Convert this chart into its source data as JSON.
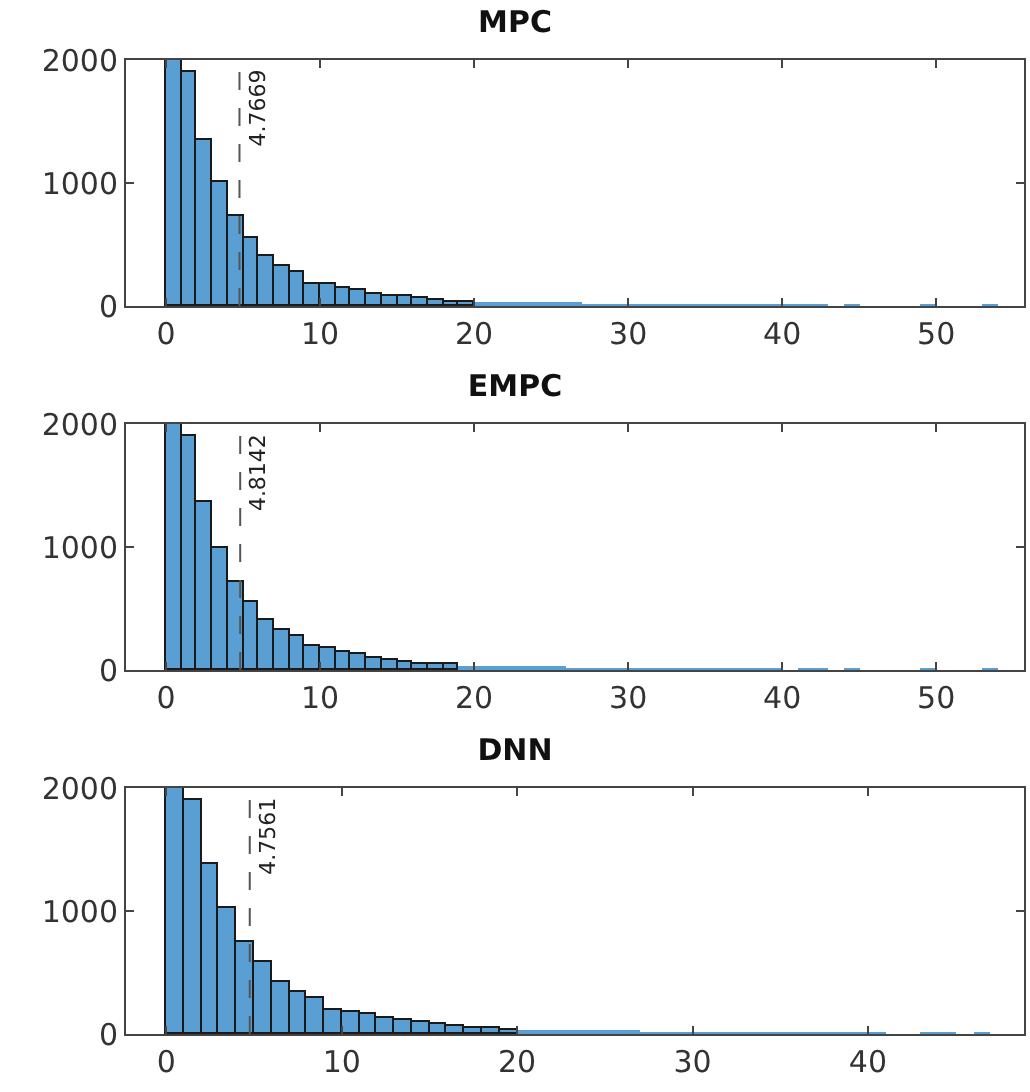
{
  "chart_data": [
    {
      "type": "histogram",
      "title": "MPC",
      "color": "#5a9fd4",
      "xlim": [
        -2.6,
        55.7
      ],
      "xticks": [
        0,
        10,
        20,
        30,
        40,
        50
      ],
      "ylim": [
        0,
        2000
      ],
      "yticks": [
        0,
        1000,
        2000
      ],
      "grid": false,
      "bins": [
        0,
        1,
        2,
        3,
        4,
        5,
        6,
        7,
        8,
        9,
        10,
        11,
        12,
        13,
        14,
        15,
        16,
        17,
        18,
        19,
        20,
        21,
        22,
        23,
        24,
        25,
        26,
        27,
        28,
        29,
        30,
        31,
        32,
        33,
        34,
        35,
        36,
        37,
        38,
        39,
        40,
        41,
        42,
        43,
        44,
        45,
        46,
        47,
        48,
        49,
        50,
        51,
        52,
        53,
        54
      ],
      "values": [
        2000,
        1910,
        1350,
        1010,
        730,
        550,
        410,
        330,
        280,
        180,
        180,
        150,
        130,
        100,
        80,
        80,
        65,
        50,
        40,
        40,
        30,
        30,
        30,
        20,
        20,
        20,
        20,
        10,
        8,
        8,
        6,
        6,
        5,
        5,
        5,
        5,
        5,
        4,
        4,
        4,
        4,
        4,
        4,
        0,
        5,
        0,
        0,
        0,
        0,
        5,
        0,
        0,
        0,
        5
      ],
      "ref_lines": [
        {
          "axis": "x",
          "value": 4.7669,
          "label": "4.7669",
          "line_style": "dashed",
          "color": "#555555"
        }
      ]
    },
    {
      "type": "histogram",
      "title": "EMPC",
      "color": "#5a9fd4",
      "xlim": [
        -2.6,
        55.7
      ],
      "xticks": [
        0,
        10,
        20,
        30,
        40,
        50
      ],
      "ylim": [
        0,
        2000
      ],
      "yticks": [
        0,
        1000,
        2000
      ],
      "grid": false,
      "bins": [
        0,
        1,
        2,
        3,
        4,
        5,
        6,
        7,
        8,
        9,
        10,
        11,
        12,
        13,
        14,
        15,
        16,
        17,
        18,
        19,
        20,
        21,
        22,
        23,
        24,
        25,
        26,
        27,
        28,
        29,
        30,
        31,
        32,
        33,
        34,
        35,
        36,
        37,
        38,
        39,
        40,
        41,
        42,
        43,
        44,
        45,
        46,
        47,
        48,
        49,
        50,
        51,
        52,
        53,
        54
      ],
      "values": [
        2000,
        1900,
        1370,
        1000,
        720,
        550,
        405,
        330,
        275,
        195,
        185,
        150,
        130,
        100,
        80,
        70,
        55,
        45,
        45,
        30,
        27,
        27,
        27,
        20,
        20,
        20,
        10,
        10,
        3,
        10,
        10,
        10,
        10,
        10,
        10,
        5,
        5,
        5,
        5,
        5,
        0,
        5,
        5,
        0,
        5,
        0,
        0,
        0,
        0,
        5,
        0,
        0,
        0,
        5
      ],
      "ref_lines": [
        {
          "axis": "x",
          "value": 4.8142,
          "label": "4.8142",
          "line_style": "dashed",
          "color": "#555555"
        }
      ]
    },
    {
      "type": "histogram",
      "title": "DNN",
      "color": "#5a9fd4",
      "xlim": [
        -2.3,
        48.9
      ],
      "xticks": [
        0,
        10,
        20,
        30,
        40
      ],
      "ylim": [
        0,
        2000
      ],
      "yticks": [
        0,
        1000,
        2000
      ],
      "grid": false,
      "bins": [
        0,
        1,
        2,
        3,
        4,
        5,
        6,
        7,
        8,
        9,
        10,
        11,
        12,
        13,
        14,
        15,
        16,
        17,
        18,
        19,
        20,
        21,
        22,
        23,
        24,
        25,
        26,
        27,
        28,
        29,
        30,
        31,
        32,
        33,
        34,
        35,
        36,
        37,
        38,
        39,
        40,
        41,
        42,
        43,
        44,
        45,
        46,
        47
      ],
      "values": [
        2000,
        1900,
        1380,
        1020,
        740,
        580,
        420,
        345,
        285,
        190,
        185,
        165,
        130,
        110,
        95,
        80,
        65,
        55,
        45,
        40,
        30,
        30,
        30,
        20,
        20,
        20,
        20,
        5,
        5,
        10,
        10,
        5,
        10,
        10,
        10,
        10,
        5,
        5,
        5,
        5,
        5,
        0,
        0,
        5,
        5,
        0,
        5
      ],
      "ref_lines": [
        {
          "axis": "x",
          "value": 4.7561,
          "label": "4.7561",
          "line_style": "dashed",
          "color": "#555555"
        }
      ]
    }
  ]
}
